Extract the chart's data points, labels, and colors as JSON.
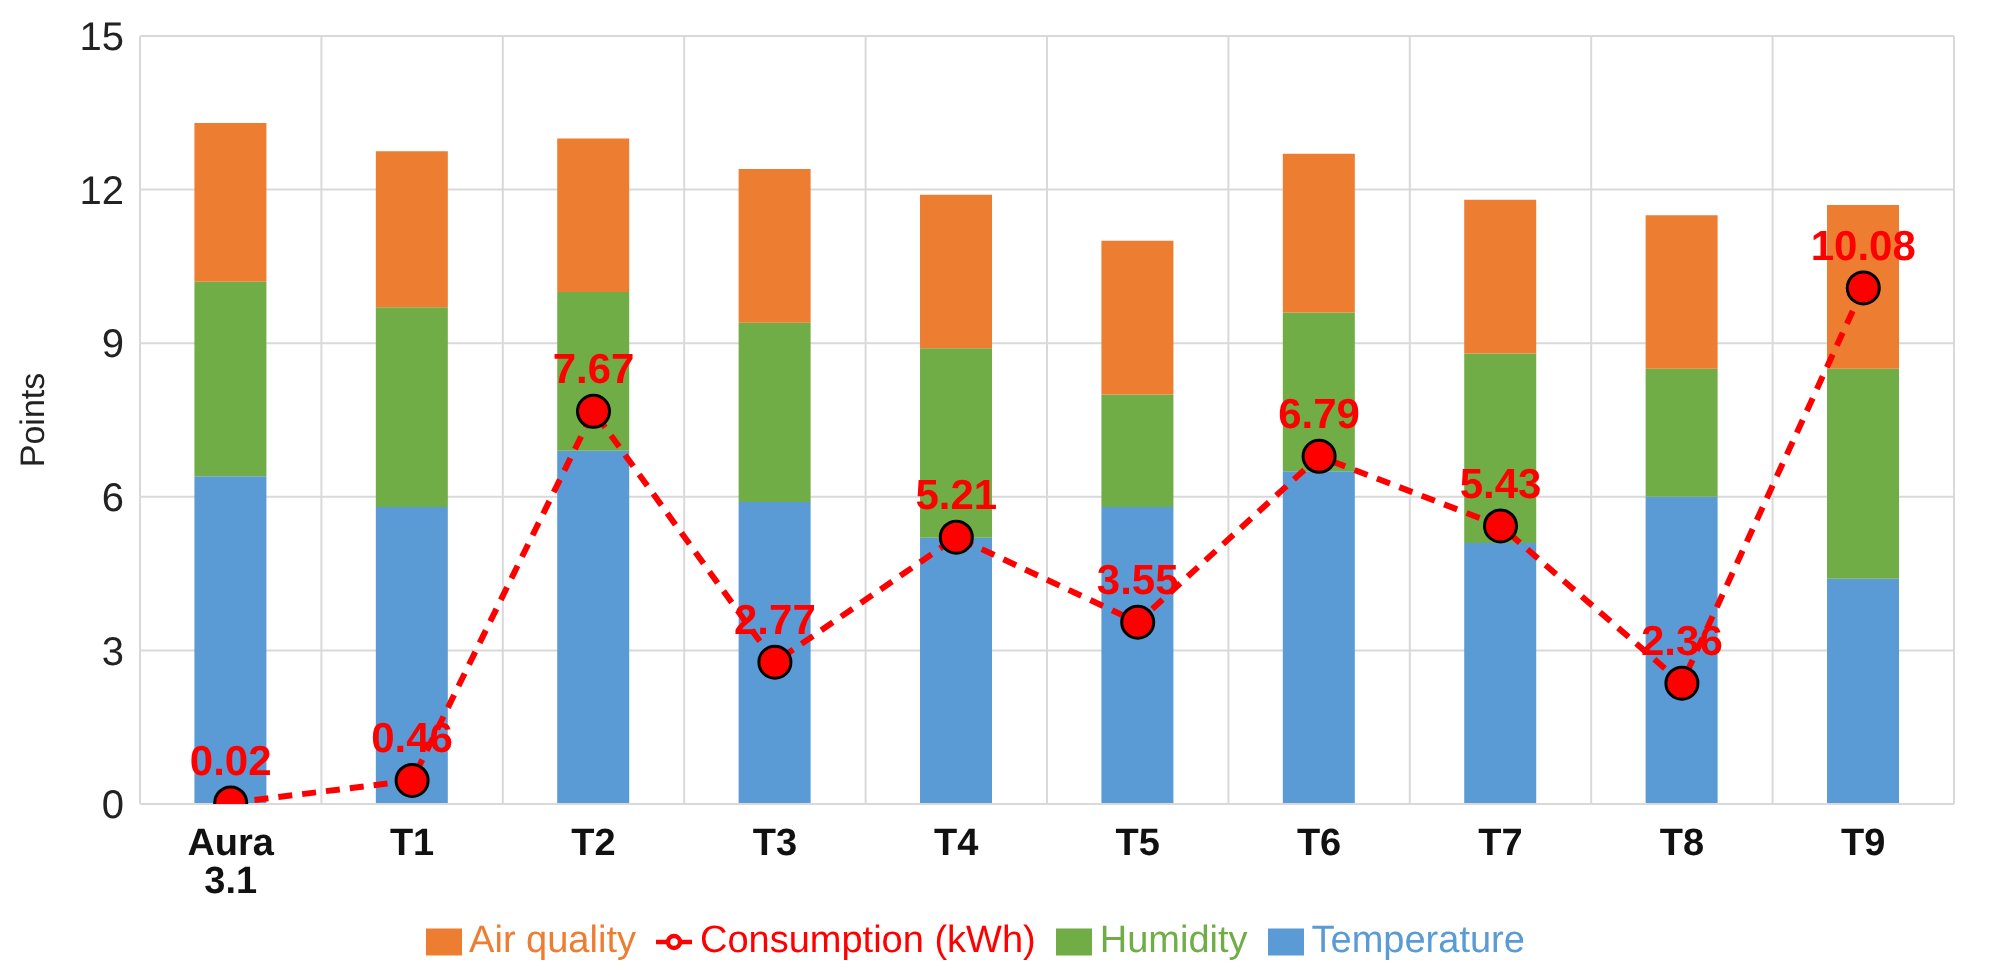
{
  "chart_data": {
    "type": "bar",
    "stacked": true,
    "ylabel": "Points",
    "categories": [
      "Aura 3.1",
      "T1",
      "T2",
      "T3",
      "T4",
      "T5",
      "T6",
      "T7",
      "T8",
      "T9"
    ],
    "series": [
      {
        "name": "Temperature",
        "color": "#5b9bd5",
        "values": [
          6.4,
          5.8,
          6.9,
          5.9,
          5.2,
          5.8,
          6.5,
          5.1,
          6.0,
          4.4
        ]
      },
      {
        "name": "Humidity",
        "color": "#70ad47",
        "values": [
          3.8,
          3.9,
          3.1,
          3.5,
          3.7,
          2.2,
          3.1,
          3.7,
          2.5,
          4.1
        ]
      },
      {
        "name": "Air quality",
        "color": "#ed7d31",
        "values": [
          3.1,
          3.05,
          3.0,
          3.0,
          3.0,
          3.0,
          3.1,
          3.0,
          3.0,
          3.2
        ]
      },
      {
        "name": "Consumption (kWh)",
        "type": "line",
        "color": "#ff0000",
        "line_style": "dashed",
        "marker": "circle",
        "data_labels": true,
        "values": [
          0.02,
          0.46,
          7.67,
          2.77,
          5.21,
          3.55,
          6.79,
          5.43,
          2.36,
          10.08
        ]
      }
    ],
    "ylim": [
      0,
      15
    ],
    "yticks": [
      0,
      3,
      6,
      9,
      12,
      15
    ],
    "grid": true,
    "legend": "bottom"
  }
}
